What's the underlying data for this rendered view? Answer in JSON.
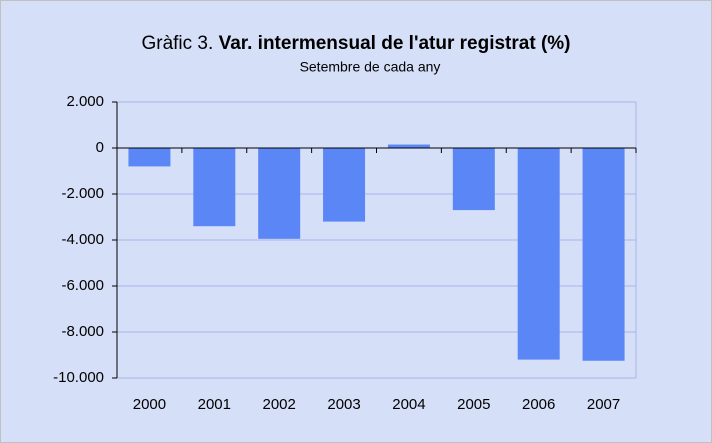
{
  "chart_data": {
    "type": "bar",
    "title_label": "Gràfic 3.",
    "title": "Var. intermensual de l'atur registrat (%)",
    "subtitle": "Setembre de cada any",
    "categories": [
      "2000",
      "2001",
      "2002",
      "2003",
      "2004",
      "2005",
      "2006",
      "2007"
    ],
    "values": [
      -800,
      -3400,
      -3950,
      -3200,
      150,
      -2700,
      -9200,
      -9250
    ],
    "color": "#5b86f5",
    "ylim": [
      -10000,
      2000
    ],
    "yticks": [
      {
        "value": -10000,
        "label": "-10.000"
      },
      {
        "value": -8000,
        "label": "-8.000"
      },
      {
        "value": -6000,
        "label": "-6.000"
      },
      {
        "value": -4000,
        "label": "-4.000"
      },
      {
        "value": -2000,
        "label": "-2.000"
      },
      0,
      {
        "value": 2000,
        "label": "2.000"
      }
    ],
    "grid": true
  }
}
